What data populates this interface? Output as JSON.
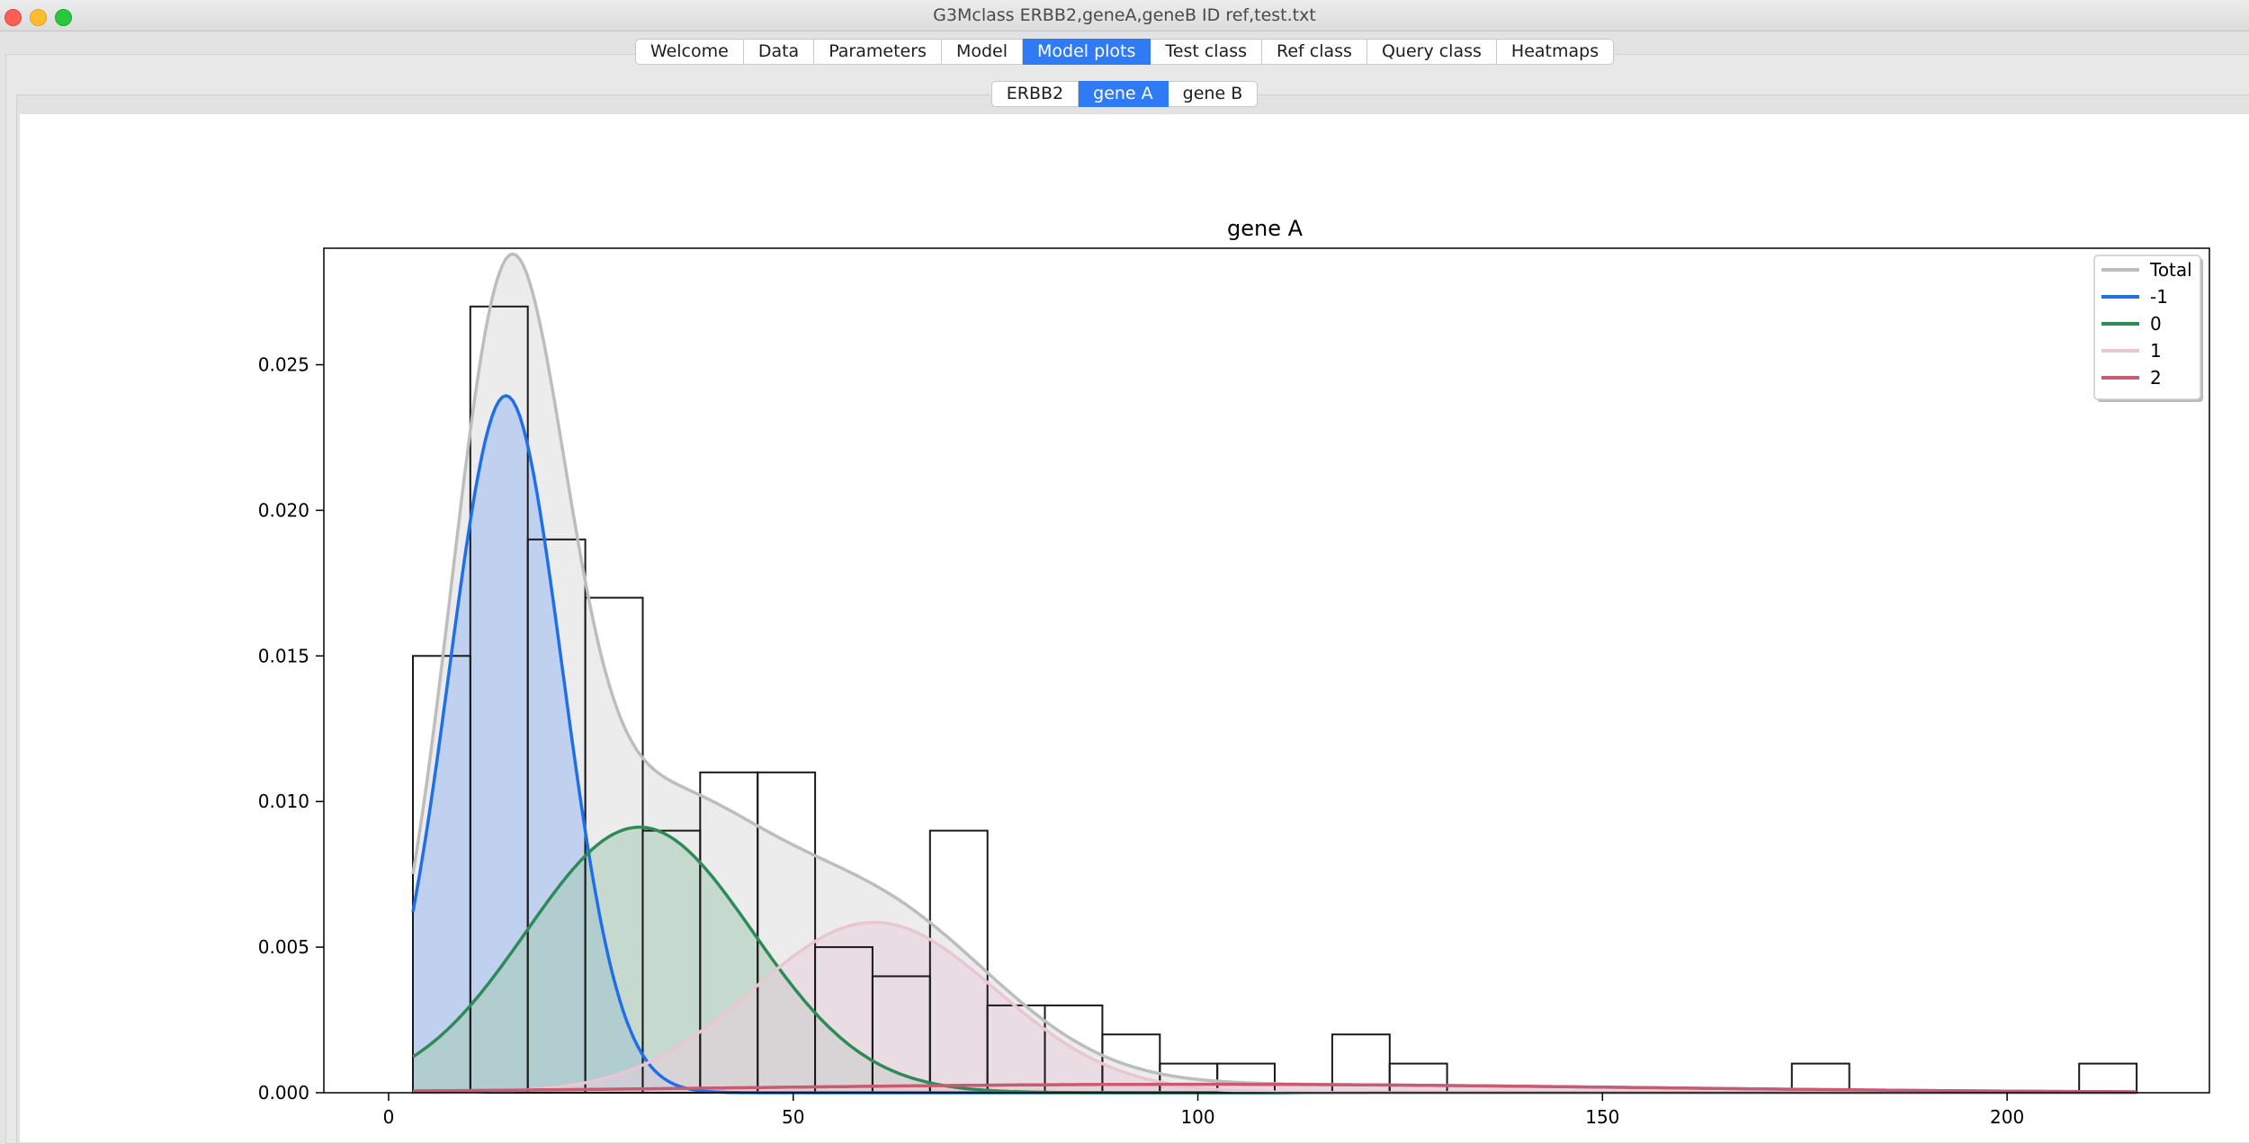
{
  "window": {
    "title": "G3Mclass ERBB2,geneA,geneB ID ref,test.txt"
  },
  "tabs": [
    "Welcome",
    "Data",
    "Parameters",
    "Model",
    "Model plots",
    "Test class",
    "Ref class",
    "Query class",
    "Heatmaps"
  ],
  "active_tab": "Model plots",
  "subtabs": [
    "ERBB2",
    "gene A",
    "gene B"
  ],
  "active_subtab": "gene A",
  "colors": {
    "accent": "#2f7bf5",
    "total": "#bdbdbd",
    "s_m1": "#1f6fe8",
    "s_0": "#2e8b57",
    "s_1": "#e8c7d3",
    "s_2": "#c85a72"
  },
  "chart_data": {
    "type": "bar",
    "title": "gene A",
    "xlabel": "",
    "ylabel": "",
    "xlim": [
      -8,
      225
    ],
    "ylim": [
      0,
      0.029
    ],
    "xticks": [
      0,
      50,
      100,
      150,
      200
    ],
    "xtick_labels": [
      "0",
      "50",
      "100",
      "150",
      "200"
    ],
    "yticks": [
      0,
      0.005,
      0.01,
      0.015,
      0.02,
      0.025
    ],
    "ytick_labels": [
      "0.000",
      "0.005",
      "0.010",
      "0.015",
      "0.020",
      "0.025"
    ],
    "legend_position": "top-right",
    "histogram": {
      "bin_edges": [
        3,
        10.1,
        17.2,
        24.3,
        31.4,
        38.5,
        45.6,
        52.7,
        59.8,
        66.9,
        74,
        81.1,
        88.2,
        95.3,
        102.4,
        109.5,
        116.6,
        123.7,
        130.8,
        137.9,
        145,
        152.1,
        159.2,
        166.3,
        173.4,
        180.5,
        187.6,
        194.7,
        201.8,
        208.9,
        216
      ],
      "density": [
        0.015,
        0.027,
        0.019,
        0.017,
        0.009,
        0.011,
        0.011,
        0.005,
        0.004,
        0.009,
        0.003,
        0.003,
        0.002,
        0.001,
        0.001,
        0,
        0.002,
        0.001,
        0,
        0,
        0,
        0,
        0,
        0,
        0.001,
        0,
        0,
        0,
        0,
        0.001
      ]
    },
    "series": [
      {
        "name": "Total",
        "color": "#bdbdbd",
        "fill": "#d4d4d4"
      },
      {
        "name": "-1",
        "color": "#1f6fe8",
        "fill": "#9bbcf3",
        "components": [
          {
            "weight": 0.42,
            "mean": 14.5,
            "sd": 7
          }
        ]
      },
      {
        "name": "0",
        "color": "#2e8b57",
        "fill": "#a8cbb6",
        "components": [
          {
            "weight": 0.32,
            "mean": 31,
            "sd": 14
          }
        ]
      },
      {
        "name": "1",
        "color": "#e8c7d3",
        "fill": "#e8d0da",
        "components": [
          {
            "weight": 0.22,
            "mean": 60,
            "sd": 15
          }
        ]
      },
      {
        "name": "2",
        "color": "#c85a72",
        "fill": "#e9c4cf",
        "components": [
          {
            "weight": 0.04,
            "mean": 100,
            "sd": 55
          }
        ]
      }
    ],
    "x_range_curves": [
      3,
      216
    ]
  }
}
